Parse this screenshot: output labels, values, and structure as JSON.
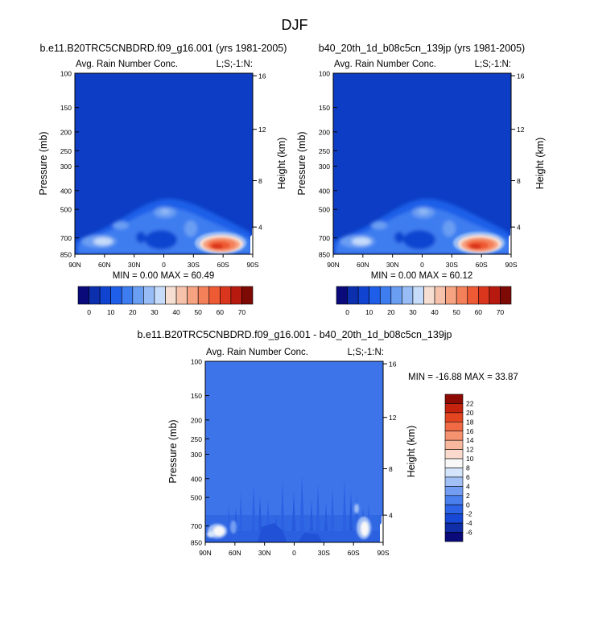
{
  "page_title": "DJF",
  "chart_data": [
    {
      "type": "heatmap",
      "title": "b.e11.B20TRC5CNBDRD.f09_g16.001 (yrs 1981-2005)",
      "subtitle_left": "Avg. Rain Number Conc.",
      "subtitle_right": "L;S;-1:N:",
      "xlabel": "",
      "ylabel": "Pressure (mb)",
      "ylabel_right": "Height (km)",
      "x_ticks": [
        "90N",
        "60N",
        "30N",
        "0",
        "30S",
        "60S",
        "90S"
      ],
      "y_ticks": [
        "100",
        "150",
        "200",
        "250",
        "300",
        "400",
        "500",
        "700",
        "850"
      ],
      "y_right_ticks": [
        "16",
        "12",
        "8",
        "4"
      ],
      "stats": "MIN =  0.00  MAX = 60.49",
      "colorbar_ticks": [
        "0",
        "10",
        "20",
        "30",
        "40",
        "50",
        "60",
        "70"
      ],
      "min": 0.0,
      "max": 60.49,
      "maximum_location": {
        "lat": "45S",
        "pressure_mb": 850
      }
    },
    {
      "type": "heatmap",
      "title": "b40_20th_1d_b08c5cn_139jp (yrs 1981-2005)",
      "subtitle_left": "Avg. Rain Number Conc.",
      "subtitle_right": "L;S;-1:N:",
      "xlabel": "",
      "ylabel": "Pressure (mb)",
      "ylabel_right": "Height (km)",
      "x_ticks": [
        "90N",
        "60N",
        "30N",
        "0",
        "30S",
        "60S",
        "90S"
      ],
      "y_ticks": [
        "100",
        "150",
        "200",
        "250",
        "300",
        "400",
        "500",
        "700",
        "850"
      ],
      "y_right_ticks": [
        "16",
        "12",
        "8",
        "4"
      ],
      "stats": "MIN =  0.00  MAX = 60.12",
      "colorbar_ticks": [
        "0",
        "10",
        "20",
        "30",
        "40",
        "50",
        "60",
        "70"
      ],
      "min": 0.0,
      "max": 60.12,
      "maximum_location": {
        "lat": "45S",
        "pressure_mb": 850
      }
    },
    {
      "type": "heatmap",
      "title": "b.e11.B20TRC5CNBDRD.f09_g16.001 - b40_20th_1d_b08c5cn_139jp",
      "subtitle_left": "Avg. Rain Number Conc.",
      "subtitle_right": "L;S;-1:N:",
      "xlabel": "",
      "ylabel": "Pressure (mb)",
      "ylabel_right": "Height (km)",
      "x_ticks": [
        "90N",
        "60N",
        "30N",
        "0",
        "30S",
        "60S",
        "90S"
      ],
      "y_ticks": [
        "100",
        "150",
        "200",
        "250",
        "300",
        "400",
        "500",
        "700",
        "850"
      ],
      "y_right_ticks": [
        "16",
        "12",
        "8",
        "4"
      ],
      "stats": "MIN = -16.88  MAX =  33.87",
      "colorbar_ticks": [
        "22",
        "20",
        "18",
        "16",
        "14",
        "12",
        "10",
        "8",
        "6",
        "4",
        "2",
        "0",
        "-2",
        "-4",
        "-6"
      ],
      "min": -16.88,
      "max": 33.87
    }
  ],
  "colors": {
    "abs_palette": [
      "#0a0a7a",
      "#0c2fae",
      "#1044d0",
      "#1f5ee8",
      "#3d7df0",
      "#6a9ef3",
      "#97bcf6",
      "#c6dcfa",
      "#f6ded3",
      "#f7c2ab",
      "#f6a382",
      "#f4805a",
      "#ee5a33",
      "#d9361d",
      "#b8190f",
      "#7e0a05"
    ],
    "diff_palette": [
      "#0a0a7a",
      "#0f2ea8",
      "#1848d6",
      "#2d63e6",
      "#4a7fee",
      "#739df2",
      "#a2c0f6",
      "#d4e4fb",
      "#f8f8f8",
      "#fbdacd",
      "#f8b89d",
      "#f59270",
      "#f06b45",
      "#e44521",
      "#c5230e",
      "#8e0a05"
    ],
    "abs_background": "#0c3dc4",
    "diff_background": "#3d74ea"
  }
}
